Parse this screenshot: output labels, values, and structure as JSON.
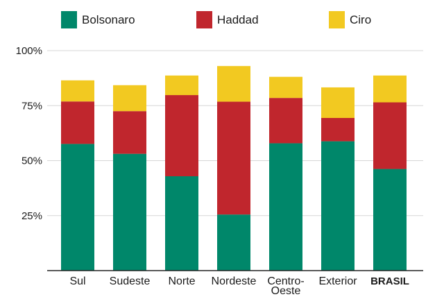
{
  "chart_data": {
    "type": "bar",
    "stacked": true,
    "categories": [
      "Sul",
      "Sudeste",
      "Norte",
      "Nordeste",
      "Centro-Oeste",
      "Exterior",
      "BRASIL"
    ],
    "category_label_lines": [
      [
        "Sul"
      ],
      [
        "Sudeste"
      ],
      [
        "Norte"
      ],
      [
        "Nordeste"
      ],
      [
        "Centro-",
        "Oeste"
      ],
      [
        "Exterior"
      ],
      [
        "BRASIL"
      ]
    ],
    "emphasized_category": "BRASIL",
    "series": [
      {
        "name": "Bolsonaro",
        "color": "#00876a",
        "values": [
          57.6,
          53.1,
          42.9,
          25.5,
          57.9,
          58.8,
          46.2
        ]
      },
      {
        "name": "Haddad",
        "color": "#c0262d",
        "values": [
          19.3,
          19.4,
          36.9,
          51.3,
          20.6,
          10.6,
          30.3
        ]
      },
      {
        "name": "Ciro",
        "color": "#f2c921",
        "values": [
          9.6,
          11.8,
          8.9,
          16.2,
          9.6,
          13.9,
          12.2
        ]
      }
    ],
    "yticks": [
      "25%",
      "50%",
      "75%",
      "100%"
    ],
    "ytick_values": [
      25,
      50,
      75,
      100
    ],
    "ylim": [
      0,
      100
    ],
    "grid": true,
    "legend_position": "top",
    "title": "",
    "xlabel": "",
    "ylabel": ""
  }
}
